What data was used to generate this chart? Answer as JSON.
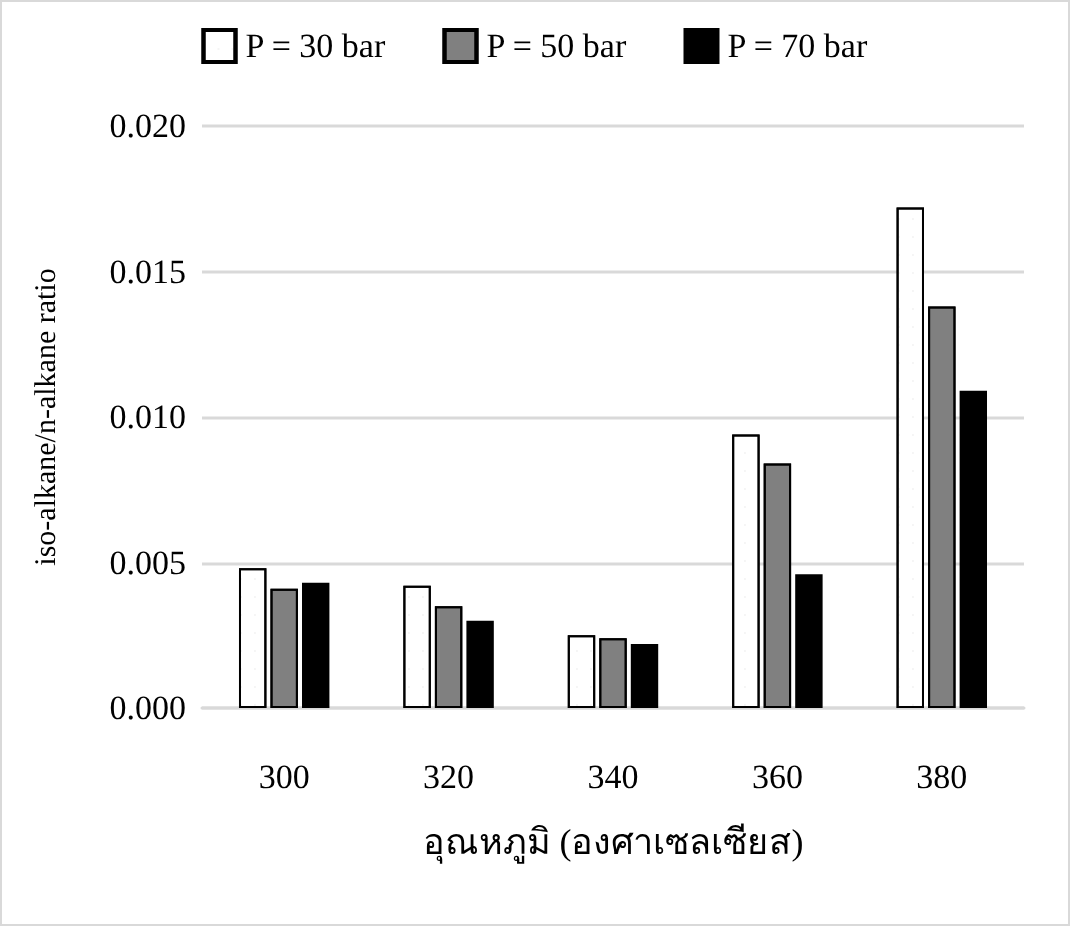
{
  "chart_data": {
    "type": "bar",
    "xlabel": "อุณหภูมิ (องศาเซลเซียส)",
    "ylabel": "iso-alkane/n-alkane ratio",
    "categories": [
      "300",
      "320",
      "340",
      "360",
      "380"
    ],
    "series": [
      {
        "name": "P = 30 bar",
        "color": "#ffffff",
        "values": [
          0.0048,
          0.0042,
          0.0025,
          0.0094,
          0.0172
        ]
      },
      {
        "name": "P = 50 bar",
        "color": "#808080",
        "values": [
          0.0041,
          0.0035,
          0.0024,
          0.0084,
          0.0138
        ]
      },
      {
        "name": "P = 70 bar",
        "color": "#000000",
        "values": [
          0.0043,
          0.003,
          0.0022,
          0.0046,
          0.0109
        ]
      }
    ],
    "ylim": [
      0,
      0.02
    ],
    "yticks": [
      {
        "value": 0,
        "label": "0.000"
      },
      {
        "value": 0.005,
        "label": "0.005"
      },
      {
        "value": 0.01,
        "label": "0.010"
      },
      {
        "value": 0.015,
        "label": "0.015"
      },
      {
        "value": 0.02,
        "label": "0.020"
      }
    ],
    "grid": "y",
    "legend": "top"
  }
}
